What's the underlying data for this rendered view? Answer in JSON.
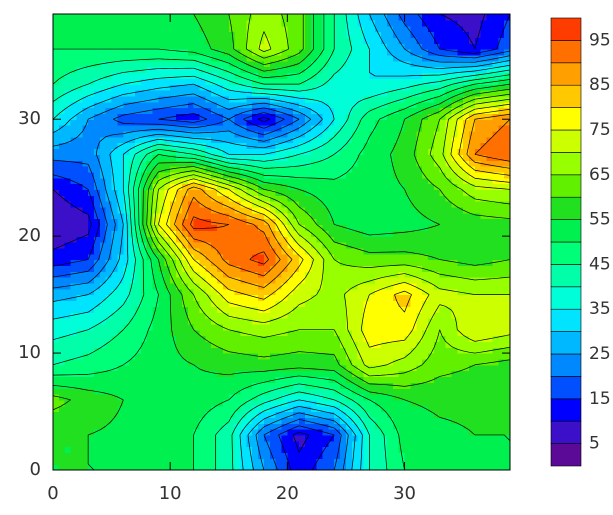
{
  "chart_data": {
    "type": "contour",
    "x": [
      0,
      3,
      6,
      9,
      12,
      15,
      18,
      21,
      24,
      27,
      30,
      33,
      36,
      39
    ],
    "y": [
      0,
      3,
      6,
      9,
      12,
      15,
      18,
      21,
      24,
      27,
      30,
      33,
      36,
      39
    ],
    "z": [
      [
        55,
        55,
        55,
        54,
        50,
        42,
        25,
        12,
        20,
        40,
        50,
        53,
        54,
        55
      ],
      [
        55,
        55,
        54,
        53,
        50,
        42,
        20,
        8,
        15,
        40,
        52,
        54,
        55,
        55
      ],
      [
        62,
        58,
        55,
        54,
        53,
        50,
        42,
        35,
        40,
        50,
        55,
        56,
        56,
        56
      ],
      [
        45,
        47,
        50,
        53,
        55,
        57,
        58,
        57,
        58,
        72,
        68,
        62,
        60,
        58
      ],
      [
        38,
        40,
        45,
        52,
        60,
        65,
        67,
        65,
        65,
        78,
        78,
        65,
        75,
        72
      ],
      [
        28,
        30,
        38,
        50,
        65,
        78,
        82,
        72,
        68,
        75,
        82,
        72,
        70,
        70
      ],
      [
        12,
        15,
        32,
        55,
        80,
        92,
        97,
        82,
        65,
        62,
        62,
        60,
        58,
        60
      ],
      [
        5,
        8,
        30,
        75,
        97,
        95,
        88,
        65,
        55,
        52,
        53,
        55,
        57,
        58
      ],
      [
        10,
        15,
        35,
        70,
        88,
        75,
        60,
        55,
        52,
        53,
        55,
        60,
        68,
        70
      ],
      [
        22,
        22,
        35,
        50,
        45,
        35,
        35,
        40,
        45,
        52,
        57,
        68,
        90,
        95
      ],
      [
        35,
        25,
        18,
        15,
        12,
        20,
        8,
        20,
        35,
        48,
        55,
        65,
        85,
        90
      ],
      [
        45,
        40,
        35,
        32,
        30,
        38,
        45,
        45,
        38,
        35,
        38,
        42,
        50,
        55
      ],
      [
        50,
        50,
        50,
        50,
        52,
        58,
        72,
        62,
        45,
        35,
        25,
        15,
        10,
        18
      ],
      [
        52,
        53,
        54,
        55,
        55,
        60,
        68,
        62,
        45,
        30,
        18,
        10,
        8,
        15
      ]
    ],
    "levels": [
      0,
      5,
      10,
      15,
      20,
      25,
      30,
      35,
      40,
      45,
      50,
      55,
      60,
      65,
      70,
      75,
      80,
      85,
      90,
      95,
      100
    ],
    "colors": [
      "#5a0a96",
      "#3c10c8",
      "#0000ff",
      "#0050ff",
      "#0088ff",
      "#00b8ff",
      "#00e4ff",
      "#00ffd8",
      "#00ffa8",
      "#00ff78",
      "#00f050",
      "#20e020",
      "#60f000",
      "#98ff00",
      "#ccff00",
      "#ffff00",
      "#ffc800",
      "#ffa000",
      "#ff7000",
      "#ff3c00"
    ],
    "colorbar_ticks": [
      5,
      15,
      25,
      35,
      45,
      55,
      65,
      75,
      85,
      95
    ],
    "xlim": [
      0,
      39
    ],
    "ylim": [
      0,
      39
    ],
    "xticks": [
      0,
      10,
      20,
      30
    ],
    "yticks": [
      0,
      10,
      20,
      30
    ]
  }
}
